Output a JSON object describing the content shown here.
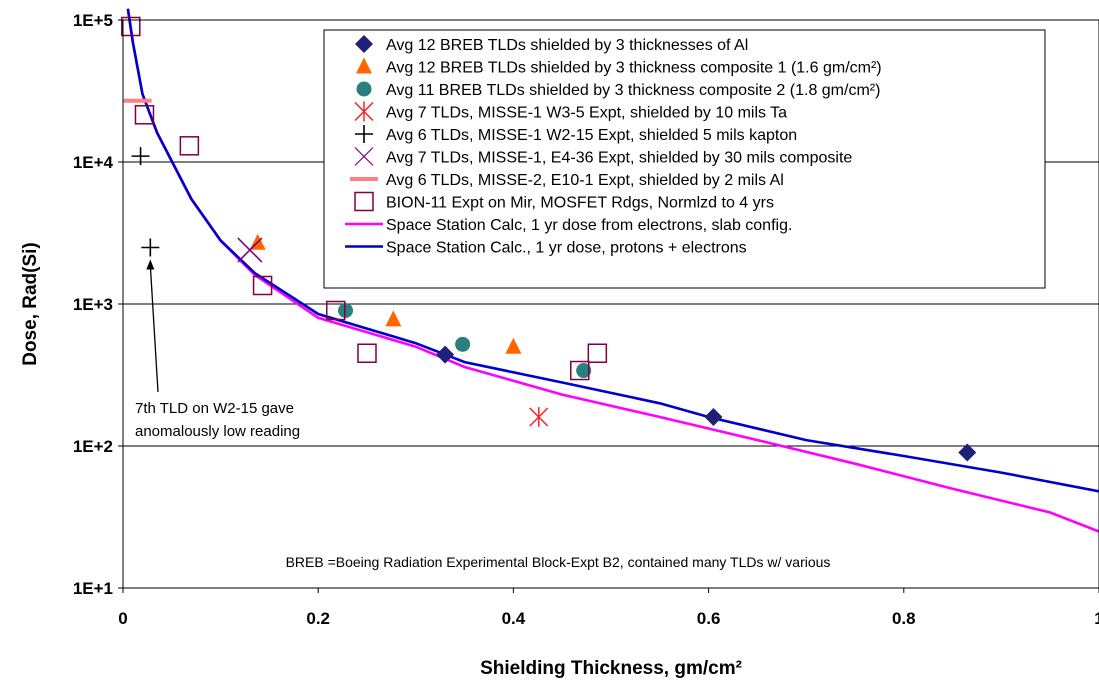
{
  "chart_data": {
    "type": "scatter",
    "title": "",
    "xlabel": "Shielding Thickness, gm/cm²",
    "ylabel": "Dose, Rad(Si)",
    "xlim": [
      0,
      1
    ],
    "ylim": [
      10,
      100000
    ],
    "y_scale": "log",
    "grid": "horizontal major gridlines",
    "legend_position": "top-right",
    "x_ticks": [
      "0",
      "0.2",
      "0.4",
      "0.6",
      "0.8",
      "1"
    ],
    "y_ticks": [
      "1E+1",
      "1E+2",
      "1E+3",
      "1E+4",
      "1E+5"
    ],
    "series": [
      {
        "name": "Avg 12 BREB TLDs shielded by 3 thicknesses of Al",
        "marker": "diamond",
        "color": "#1f1f7a",
        "points": [
          [
            0.33,
            440
          ],
          [
            0.605,
            160
          ],
          [
            0.865,
            90
          ]
        ]
      },
      {
        "name": "Avg 12 BREB TLDs shielded by 3 thickness composite 1 (1.6 gm/cm²)",
        "marker": "triangle",
        "color": "#ff6600",
        "points": [
          [
            0.138,
            2700
          ],
          [
            0.277,
            780
          ],
          [
            0.4,
            500
          ]
        ]
      },
      {
        "name": "Avg 11 BREB TLDs shielded by 3 thickness composite 2 (1.8 gm/cm²)",
        "marker": "circle",
        "color": "#2a8080",
        "points": [
          [
            0.228,
            900
          ],
          [
            0.348,
            520
          ],
          [
            0.472,
            340
          ]
        ]
      },
      {
        "name": "Avg 7 TLDs, MISSE-1 W3-5 Expt, shielded by 10 mils Ta",
        "marker": "asterisk",
        "color": "#ff2020",
        "points": [
          [
            0.426,
            160
          ]
        ]
      },
      {
        "name": "Avg 6 TLDs, MISSE-1 W2-15 Expt, shielded 5 mils kapton",
        "marker": "plus",
        "color": "#000000",
        "points": [
          [
            0.018,
            11000
          ],
          [
            0.028,
            2500
          ]
        ]
      },
      {
        "name": "Avg 7 TLDs, MISSE-1, E4-36 Expt, shielded by 30 mils composite",
        "marker": "x",
        "color": "#800080",
        "points": [
          [
            0.13,
            2400
          ]
        ]
      },
      {
        "name": "Avg 6 TLDs, MISSE-2, E10-1 Expt, shielded by 2 mils Al",
        "marker": "dash",
        "color": "#ff8080",
        "points": [
          [
            0.015,
            27000
          ]
        ]
      },
      {
        "name": "BION-11 Expt on Mir, MOSFET Rdgs, Normlzd to 4 yrs",
        "marker": "square",
        "color": "#800040",
        "points": [
          [
            0.008,
            90000
          ],
          [
            0.022,
            21500
          ],
          [
            0.068,
            13000
          ],
          [
            0.143,
            1350
          ],
          [
            0.218,
            900
          ],
          [
            0.25,
            450
          ],
          [
            0.468,
            340
          ],
          [
            0.486,
            450
          ]
        ]
      },
      {
        "name": "Space Station Calc, 1 yr dose from electrons, slab config.",
        "type": "line",
        "color": "#ff00ff",
        "points": [
          [
            0.005,
            120000
          ],
          [
            0.01,
            70000
          ],
          [
            0.02,
            30000
          ],
          [
            0.035,
            16000
          ],
          [
            0.07,
            5500
          ],
          [
            0.1,
            2800
          ],
          [
            0.135,
            1600
          ],
          [
            0.2,
            800
          ],
          [
            0.3,
            500
          ],
          [
            0.35,
            360
          ],
          [
            0.45,
            230
          ],
          [
            0.55,
            160
          ],
          [
            0.65,
            110
          ],
          [
            0.75,
            75
          ],
          [
            0.85,
            50
          ],
          [
            0.95,
            34
          ],
          [
            1.0,
            25
          ]
        ]
      },
      {
        "name": "Space Station Calc., 1 yr dose, protons + electrons",
        "type": "line",
        "color": "#0000cc",
        "points": [
          [
            0.005,
            120000
          ],
          [
            0.01,
            70000
          ],
          [
            0.02,
            30000
          ],
          [
            0.035,
            16000
          ],
          [
            0.07,
            5500
          ],
          [
            0.1,
            2800
          ],
          [
            0.135,
            1650
          ],
          [
            0.2,
            850
          ],
          [
            0.3,
            530
          ],
          [
            0.35,
            390
          ],
          [
            0.45,
            280
          ],
          [
            0.55,
            200
          ],
          [
            0.6,
            160
          ],
          [
            0.7,
            110
          ],
          [
            0.8,
            85
          ],
          [
            0.9,
            65
          ],
          [
            1.0,
            48
          ]
        ]
      }
    ],
    "annotations": [
      {
        "text_lines": [
          "7th TLD on W2-15 gave",
          "anomalously low reading"
        ],
        "arrow_to": [
          0.028,
          2500
        ]
      },
      {
        "text": "BREB =Boeing Radiation Experimental Block-Expt B2, contained many TLDs w/ various"
      }
    ]
  }
}
